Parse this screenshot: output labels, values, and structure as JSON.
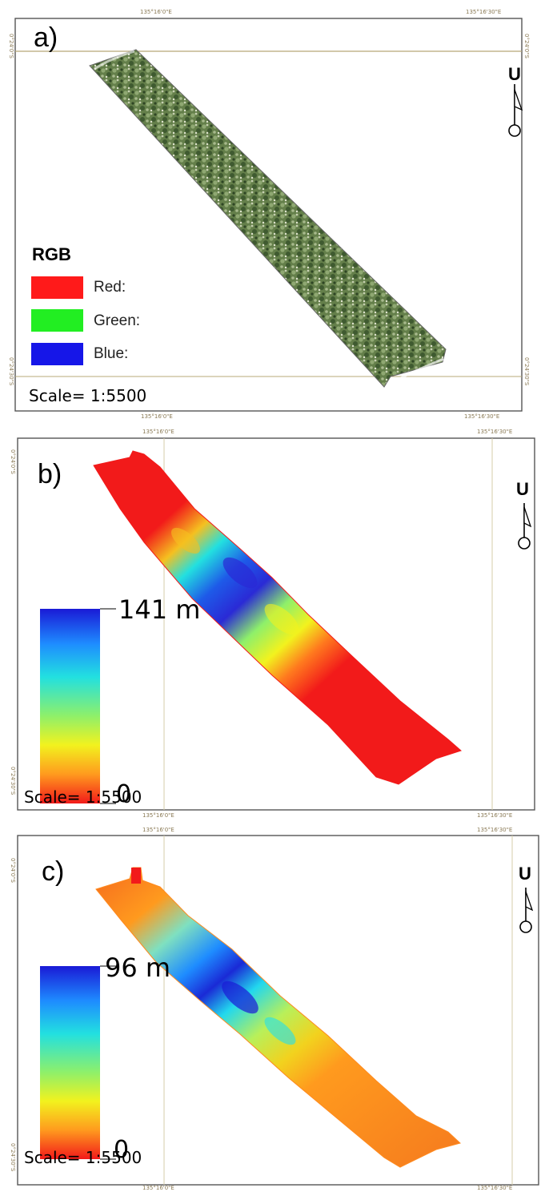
{
  "panels": [
    {
      "id": "a",
      "label": "a)",
      "scale_text": "Scale= 1:5500",
      "north_letter": "U",
      "coords": {
        "top_left": "135°16'0\"E",
        "top_right": "135°16'30\"E",
        "bottom_left": "135°16'0\"E",
        "bottom_right": "135°16'30\"E",
        "left_top": "0°24'0\"S",
        "left_bottom": "0°24'30\"S",
        "right_top": "0°24'0\"S",
        "right_bottom": "0°24'30\"S"
      },
      "legend": {
        "title": "RGB",
        "items": [
          {
            "label": "Red:",
            "color": "#ff1a1a"
          },
          {
            "label": "Green:",
            "color": "#22ee22"
          },
          {
            "label": "Blue:",
            "color": "#1616e8"
          }
        ]
      }
    },
    {
      "id": "b",
      "label": "b)",
      "scale_text": "Scale= 1:5500",
      "north_letter": "U",
      "coords": {
        "top_left": "135°16'0\"E",
        "top_right": "135°16'30\"E",
        "bottom_left": "135°16'0\"E",
        "bottom_right": "135°16'30\"E",
        "left_top": "0°24'0\"S",
        "left_bottom": "0°24'30\"S"
      },
      "colorbar": {
        "max_label": "141 m",
        "min_label": "0",
        "max": 141,
        "min": 0
      }
    },
    {
      "id": "c",
      "label": "c)",
      "scale_text": "Scale= 1:5500",
      "north_letter": "U",
      "coords": {
        "top_left": "135°16'0\"E",
        "top_right": "135°16'30\"E",
        "bottom_left": "135°16'0\"E",
        "bottom_right": "135°16'30\"E",
        "left_top": "0°24'0\"S",
        "left_bottom": "0°24'30\"S"
      },
      "colorbar": {
        "max_label": "96 m",
        "min_label": "0",
        "max": 96,
        "min": 0
      }
    }
  ],
  "colors": {
    "frame": "#555555",
    "grid_line": "#b8a878",
    "vegetation": "#5f7a45",
    "ramp": [
      "#1a1ad6",
      "#1e8cff",
      "#22e0e0",
      "#8ef06a",
      "#f2f21e",
      "#ff9a1e",
      "#f21a1a"
    ]
  }
}
